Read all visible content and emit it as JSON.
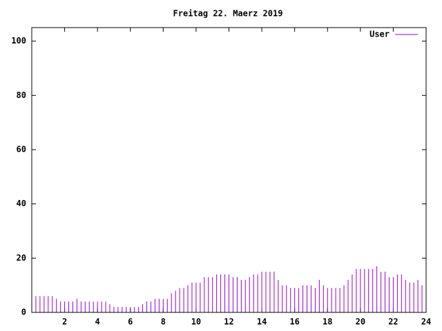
{
  "chart_data": {
    "type": "impulse",
    "title": "Freitag 22. Maerz 2019",
    "series": [
      {
        "name": "User",
        "color": "#9400d3",
        "x": [
          0,
          0.25,
          0.5,
          0.75,
          1,
          1.25,
          1.5,
          1.75,
          2,
          2.25,
          2.5,
          2.75,
          3,
          3.25,
          3.5,
          3.75,
          4,
          4.25,
          4.5,
          4.75,
          5,
          5.25,
          5.5,
          5.75,
          6,
          6.25,
          6.5,
          6.75,
          7,
          7.25,
          7.5,
          7.75,
          8,
          8.25,
          8.5,
          8.75,
          9,
          9.25,
          9.5,
          9.75,
          10,
          10.25,
          10.5,
          10.75,
          11,
          11.25,
          11.5,
          11.75,
          12,
          12.25,
          12.5,
          12.75,
          13,
          13.25,
          13.5,
          13.75,
          14,
          14.25,
          14.5,
          14.75,
          15,
          15.25,
          15.5,
          15.75,
          16,
          16.25,
          16.5,
          16.75,
          17,
          17.25,
          17.5,
          17.75,
          18,
          18.25,
          18.5,
          18.75,
          19,
          19.25,
          19.5,
          19.75,
          20,
          20.25,
          20.5,
          20.75,
          21,
          21.25,
          21.5,
          21.75,
          22,
          22.25,
          22.5,
          22.75,
          23,
          23.25,
          23.5,
          23.75
        ],
        "values": [
          6,
          6,
          6,
          6,
          6,
          6,
          5,
          4,
          4,
          4,
          4,
          5,
          4,
          4,
          4,
          4,
          4,
          4,
          4,
          3,
          2,
          2,
          2,
          2,
          2,
          2,
          2,
          3,
          4,
          4,
          5,
          5,
          5,
          5,
          7,
          8,
          9,
          9,
          10,
          11,
          11,
          11,
          13,
          13,
          13,
          14,
          14,
          14,
          14,
          13,
          13,
          12,
          12,
          13,
          14,
          14,
          15,
          15,
          15,
          15,
          12,
          10,
          10,
          9,
          9,
          9,
          10,
          10,
          10,
          9,
          12,
          10,
          9,
          9,
          9,
          9,
          10,
          12,
          14,
          16,
          16,
          16,
          16,
          16,
          17,
          15,
          15,
          13,
          13,
          14,
          14,
          12,
          11,
          11,
          12,
          10
        ]
      }
    ],
    "xlim": [
      0,
      24
    ],
    "xticks": [
      2,
      4,
      6,
      8,
      10,
      12,
      14,
      16,
      18,
      20,
      22,
      24
    ],
    "ylim": [
      0,
      105
    ],
    "yticks": [
      0,
      20,
      40,
      60,
      80,
      100
    ],
    "legend": "top-right"
  }
}
